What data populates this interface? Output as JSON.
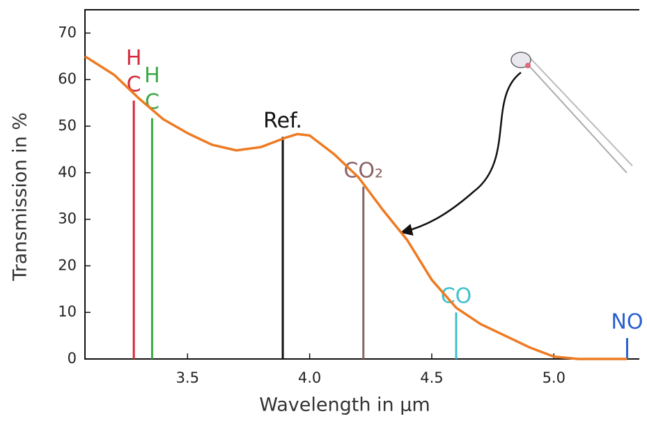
{
  "chart_data": {
    "type": "line",
    "x_label": "Wavelength in µm",
    "y_label": "Transmission in %",
    "x": [
      3.08,
      3.2,
      3.3,
      3.4,
      3.5,
      3.6,
      3.7,
      3.8,
      3.9,
      3.95,
      4.0,
      4.1,
      4.2,
      4.3,
      4.4,
      4.5,
      4.6,
      4.7,
      4.8,
      4.9,
      5.0,
      5.1,
      5.2,
      5.3
    ],
    "values": [
      65,
      61,
      56,
      51.5,
      48.5,
      46,
      44.8,
      45.5,
      47.5,
      48.3,
      48,
      44,
      39,
      32,
      25.5,
      17,
      11,
      7.5,
      5,
      2.5,
      0.5,
      0,
      0,
      0
    ],
    "color": "#ee7a22",
    "gas_lines": [
      {
        "label": [
          "H",
          "C"
        ],
        "x": 3.28,
        "value": 55.5,
        "color": "#d42a3c"
      },
      {
        "label": [
          "H",
          "C"
        ],
        "x": 3.355,
        "value": 51.7,
        "color": "#3aa845"
      },
      {
        "label": [
          "Ref."
        ],
        "x": 3.89,
        "value": 47.7,
        "color": "#111111"
      },
      {
        "label": [
          "CO₂"
        ],
        "x": 4.22,
        "value": 37,
        "color": "#8a6366"
      },
      {
        "label": [
          "CO"
        ],
        "x": 4.6,
        "value": 10,
        "color": "#3cc2cc"
      },
      {
        "label": [
          "NO"
        ],
        "x": 5.3,
        "value": 4.5,
        "color": "#2a5fcf"
      }
    ],
    "xlim": [
      3.08,
      5.35
    ],
    "ylim": [
      0,
      75
    ],
    "xticks": [
      3.5,
      {
        "value": 4,
        "label": "4.0"
      },
      4.5,
      {
        "value": 5,
        "label": "5.0"
      }
    ],
    "yticks": [
      0,
      10,
      20,
      30,
      40,
      50,
      60,
      70
    ]
  }
}
